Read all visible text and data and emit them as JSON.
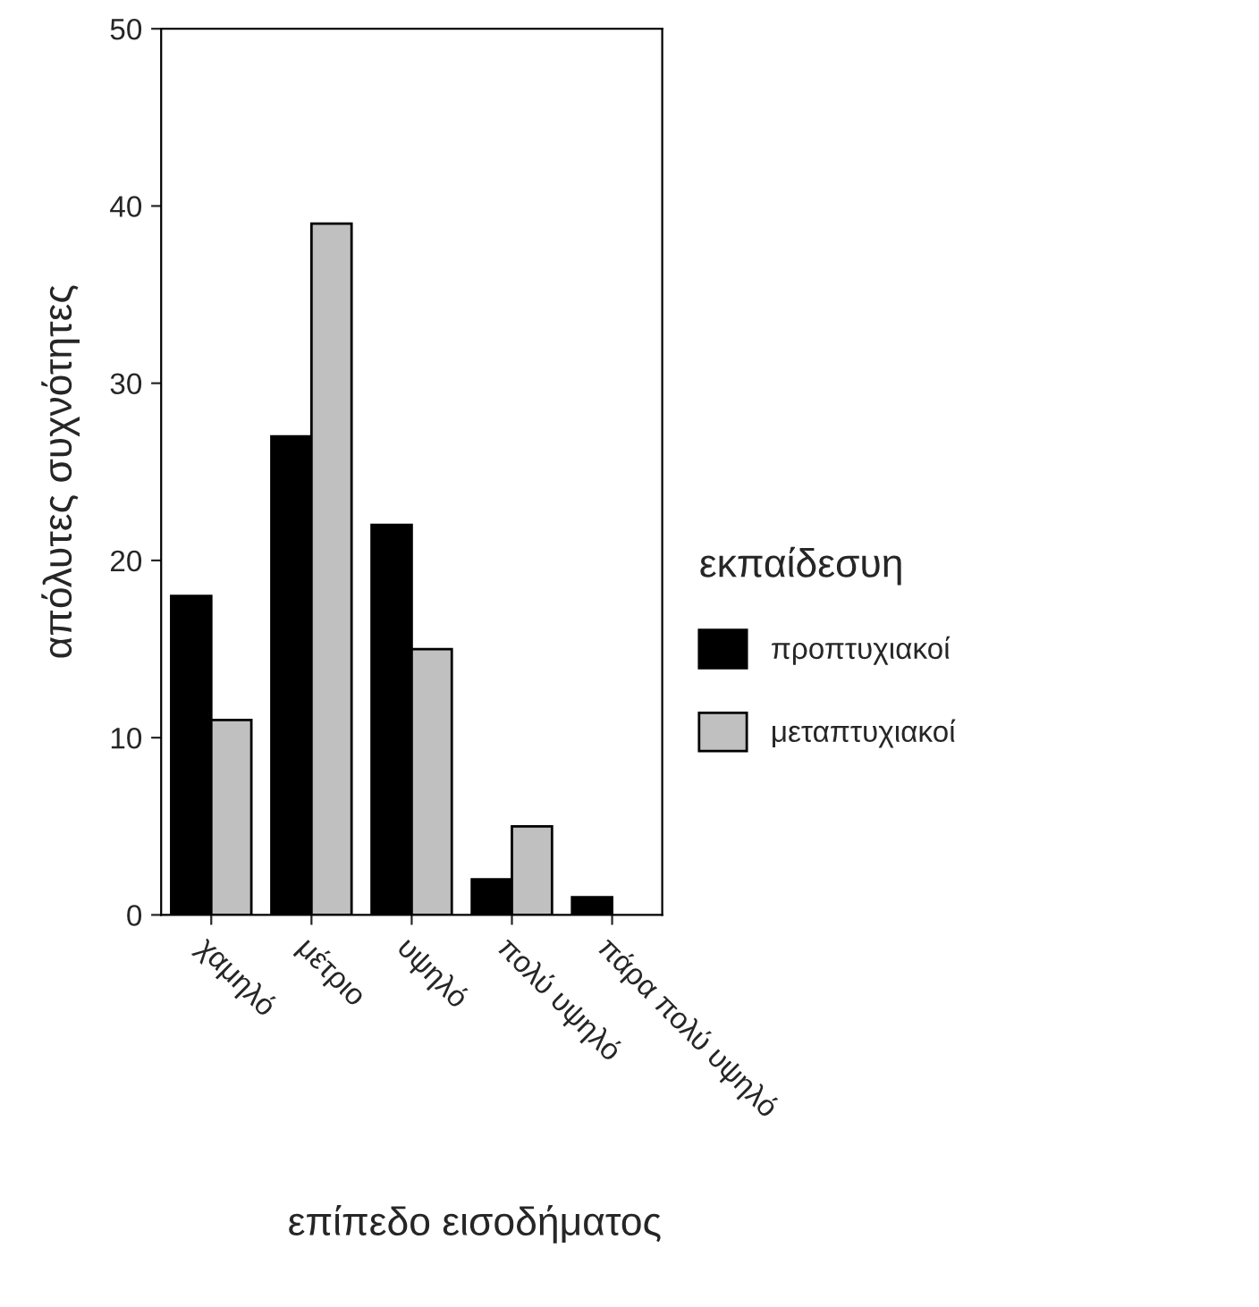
{
  "chart_data": {
    "type": "bar",
    "xlabel": "επίπεδο εισοδήματος",
    "ylabel": "απόλυτες συχνότητες",
    "legend_title": "εκπαίδεσυη",
    "categories": [
      "χαμηλό",
      "μέτριο",
      "υψηλό",
      "πολύ υψηλό",
      "πάρα πολύ υψηλό"
    ],
    "series": [
      {
        "name": "προπτυχιακοί",
        "color": "#000000",
        "values": [
          18,
          27,
          22,
          2,
          1
        ]
      },
      {
        "name": "μεταπτυχιακοί",
        "color": "#c0c0c0",
        "values": [
          11,
          39,
          15,
          5,
          null
        ]
      }
    ],
    "ylim": [
      0,
      50
    ],
    "yticks": [
      0,
      10,
      20,
      30,
      40,
      50
    ],
    "grid": false,
    "legend": "right"
  }
}
